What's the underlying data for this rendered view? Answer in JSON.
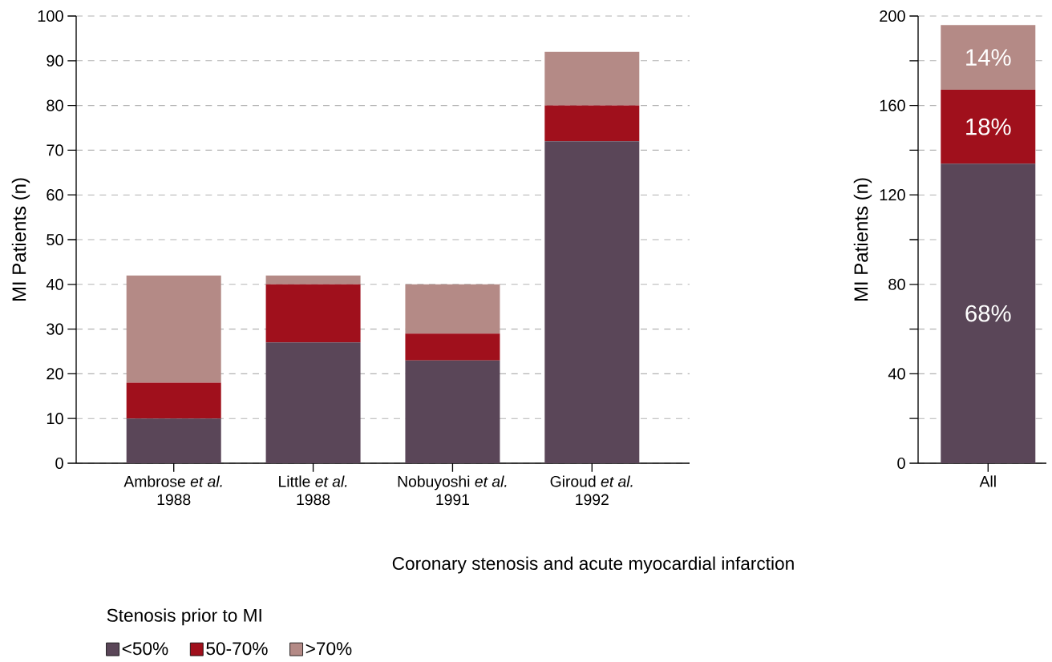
{
  "chart_data": [
    {
      "type": "bar",
      "stacked": true,
      "xlabel": "Coronary stenosis and acute myocardial infarction",
      "ylabel": "MI Patients (n)",
      "legend_title": "Stenosis prior to MI",
      "legend": "bottom left",
      "categories": [
        "Ambrose *et al.*\n1988",
        "Little *et al.*\n1988",
        "Nobuyoshi *et al.*\n1991",
        "Giroud *et al.*\n1992"
      ],
      "series": [
        {
          "name": "<50%",
          "color": "#5a4658",
          "values": [
            10,
            27,
            23,
            72
          ]
        },
        {
          "name": "50-70%",
          "color": "#a0101c",
          "values": [
            8,
            13,
            6,
            8
          ]
        },
        {
          "name": ">70%",
          "color": "#b48a86",
          "values": [
            24,
            2,
            11,
            12
          ]
        }
      ],
      "ylim": [
        0,
        100
      ],
      "yticks": [
        0,
        10,
        20,
        30,
        40,
        50,
        60,
        70,
        80,
        90,
        100
      ],
      "grid": "y"
    },
    {
      "type": "bar",
      "stacked": true,
      "ylabel": "MI Patients (n)",
      "categories": [
        "All"
      ],
      "series": [
        {
          "color": "#5a4658",
          "values": [
            134
          ]
        },
        {
          "color": "#a0101c",
          "values": [
            33
          ]
        },
        {
          "color": "#b48a86",
          "values": [
            29
          ]
        }
      ],
      "annotations": [
        "68%",
        "18%",
        "14%"
      ],
      "ylim": [
        0,
        200
      ],
      "yticks": [
        0,
        {
          "value": 20,
          "label": null
        },
        40,
        {
          "value": 60,
          "label": null
        },
        80,
        {
          "value": 100,
          "label": null
        },
        120,
        {
          "value": 140,
          "label": null
        },
        160,
        {
          "value": 180,
          "label": null
        },
        200
      ],
      "grid": "y"
    }
  ]
}
